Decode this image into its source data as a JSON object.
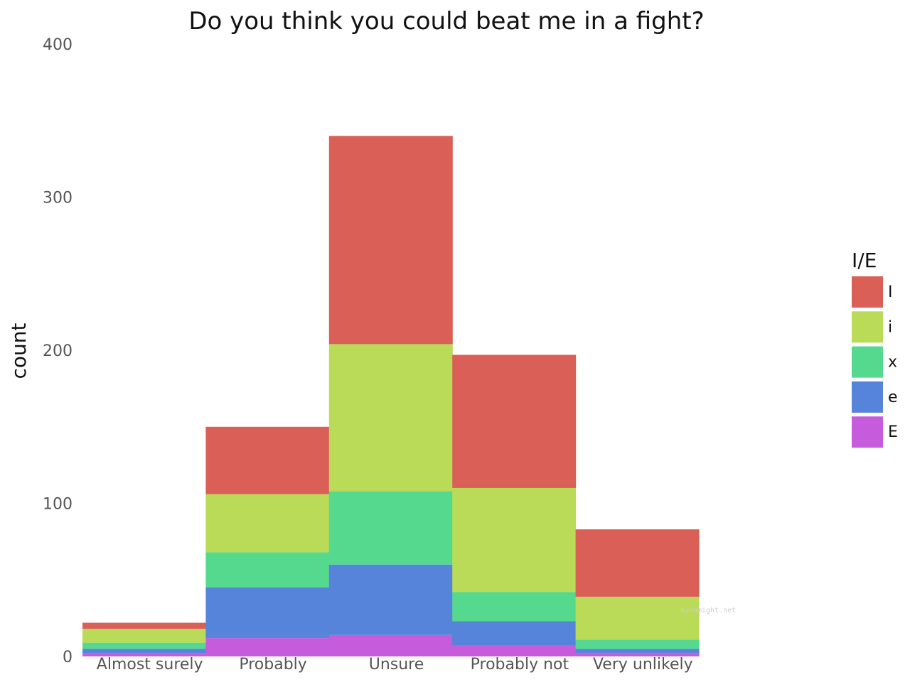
{
  "chart_data": {
    "type": "bar",
    "stacked": true,
    "title": "Do you think you could beat me in a fight?",
    "xlabel": "",
    "ylabel": "count",
    "ylim": [
      0,
      400
    ],
    "yticks": [
      0,
      100,
      200,
      300,
      400
    ],
    "grid": false,
    "legend": {
      "title": "I/E",
      "position": "right"
    },
    "categories": [
      "Almost surely",
      "Probably",
      "Unsure",
      "Probably not",
      "Very unlikely"
    ],
    "series": [
      {
        "name": "E",
        "color": "#c65bdc",
        "values": [
          2,
          12,
          14,
          7,
          2
        ]
      },
      {
        "name": "e",
        "color": "#5584da",
        "values": [
          3,
          33,
          46,
          16,
          3
        ]
      },
      {
        "name": "x",
        "color": "#55d98f",
        "values": [
          4,
          23,
          48,
          19,
          6
        ]
      },
      {
        "name": "i",
        "color": "#badb57",
        "values": [
          9,
          38,
          96,
          68,
          28
        ]
      },
      {
        "name": "I",
        "color": "#da5f57",
        "values": [
          4,
          44,
          136,
          87,
          44
        ]
      }
    ],
    "watermark": "dynomight.net"
  }
}
